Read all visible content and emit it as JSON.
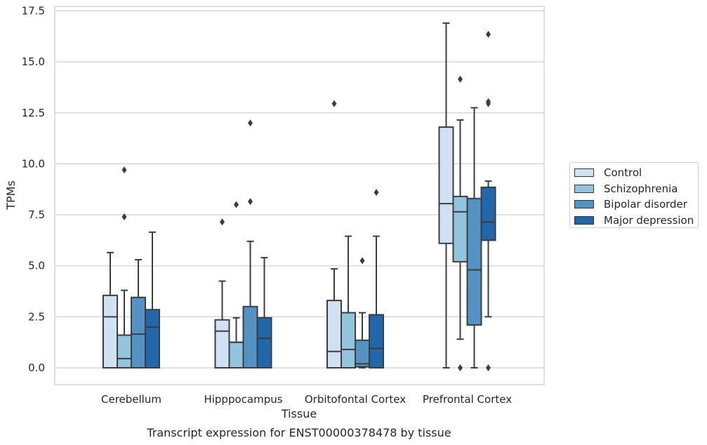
{
  "chart_data": {
    "type": "boxplot",
    "title": "",
    "caption": "Transcript expression for ENST00000378478 by tissue",
    "xlabel": "Tissue",
    "ylabel": "TPMs",
    "ylim": [
      -0.8,
      17.7
    ],
    "yticks": [
      "0.0",
      "2.5",
      "5.0",
      "7.5",
      "10.0",
      "12.5",
      "15.0",
      "17.5"
    ],
    "categories": [
      "Cerebellum",
      "Hipppocampus",
      "Orbitofontal Cortex",
      "Prefrontal Cortex"
    ],
    "grid": "horizontal",
    "legend_position": "right",
    "series": [
      {
        "name": "Control",
        "color": "#cfe1f2",
        "boxes": [
          {
            "whislo": 0.0,
            "q1": 0.0,
            "med": 2.5,
            "q3": 3.55,
            "whishi": 5.65,
            "fliers": []
          },
          {
            "whislo": 0.0,
            "q1": 0.0,
            "med": 1.8,
            "q3": 2.35,
            "whishi": 4.25,
            "fliers": [
              7.15
            ]
          },
          {
            "whislo": 0.0,
            "q1": 0.0,
            "med": 0.8,
            "q3": 3.3,
            "whishi": 4.85,
            "fliers": [
              12.95
            ]
          },
          {
            "whislo": 0.0,
            "q1": 6.1,
            "med": 8.05,
            "q3": 11.8,
            "whishi": 16.9,
            "fliers": []
          }
        ]
      },
      {
        "name": "Schizophrenia",
        "color": "#93c4de",
        "boxes": [
          {
            "whislo": 0.0,
            "q1": 0.0,
            "med": 0.45,
            "q3": 1.6,
            "whishi": 3.8,
            "fliers": [
              7.4,
              9.7
            ]
          },
          {
            "whislo": 0.0,
            "q1": 0.0,
            "med": 1.25,
            "q3": 1.25,
            "whishi": 2.45,
            "fliers": [
              8.0
            ]
          },
          {
            "whislo": 0.0,
            "q1": 0.0,
            "med": 0.9,
            "q3": 2.7,
            "whishi": 6.45,
            "fliers": []
          },
          {
            "whislo": 1.4,
            "q1": 5.2,
            "med": 7.65,
            "q3": 8.4,
            "whishi": 12.15,
            "fliers": [
              0.0,
              14.15
            ]
          }
        ]
      },
      {
        "name": "Bipolar disorder",
        "color": "#5393c3",
        "boxes": [
          {
            "whislo": 0.0,
            "q1": 0.0,
            "med": 1.65,
            "q3": 3.45,
            "whishi": 5.3,
            "fliers": []
          },
          {
            "whislo": 0.0,
            "q1": 0.0,
            "med": 0.0,
            "q3": 3.0,
            "whishi": 6.2,
            "fliers": [
              8.15,
              12.0
            ]
          },
          {
            "whislo": 0.0,
            "q1": 0.05,
            "med": 0.2,
            "q3": 1.35,
            "whishi": 2.7,
            "fliers": [
              5.25
            ]
          },
          {
            "whislo": 0.0,
            "q1": 2.1,
            "med": 4.8,
            "q3": 8.3,
            "whishi": 12.75,
            "fliers": []
          }
        ]
      },
      {
        "name": "Major depression",
        "color": "#2266ac",
        "boxes": [
          {
            "whislo": 0.0,
            "q1": 0.0,
            "med": 2.0,
            "q3": 2.85,
            "whishi": 6.65,
            "fliers": []
          },
          {
            "whislo": 0.0,
            "q1": 0.0,
            "med": 1.45,
            "q3": 2.45,
            "whishi": 5.4,
            "fliers": []
          },
          {
            "whislo": 0.0,
            "q1": 0.0,
            "med": 0.95,
            "q3": 2.6,
            "whishi": 6.45,
            "fliers": [
              8.6
            ]
          },
          {
            "whislo": 2.5,
            "q1": 6.25,
            "med": 7.15,
            "q3": 8.85,
            "whishi": 9.15,
            "fliers": [
              0.0,
              12.95,
              13.05,
              16.35
            ]
          }
        ]
      }
    ]
  }
}
